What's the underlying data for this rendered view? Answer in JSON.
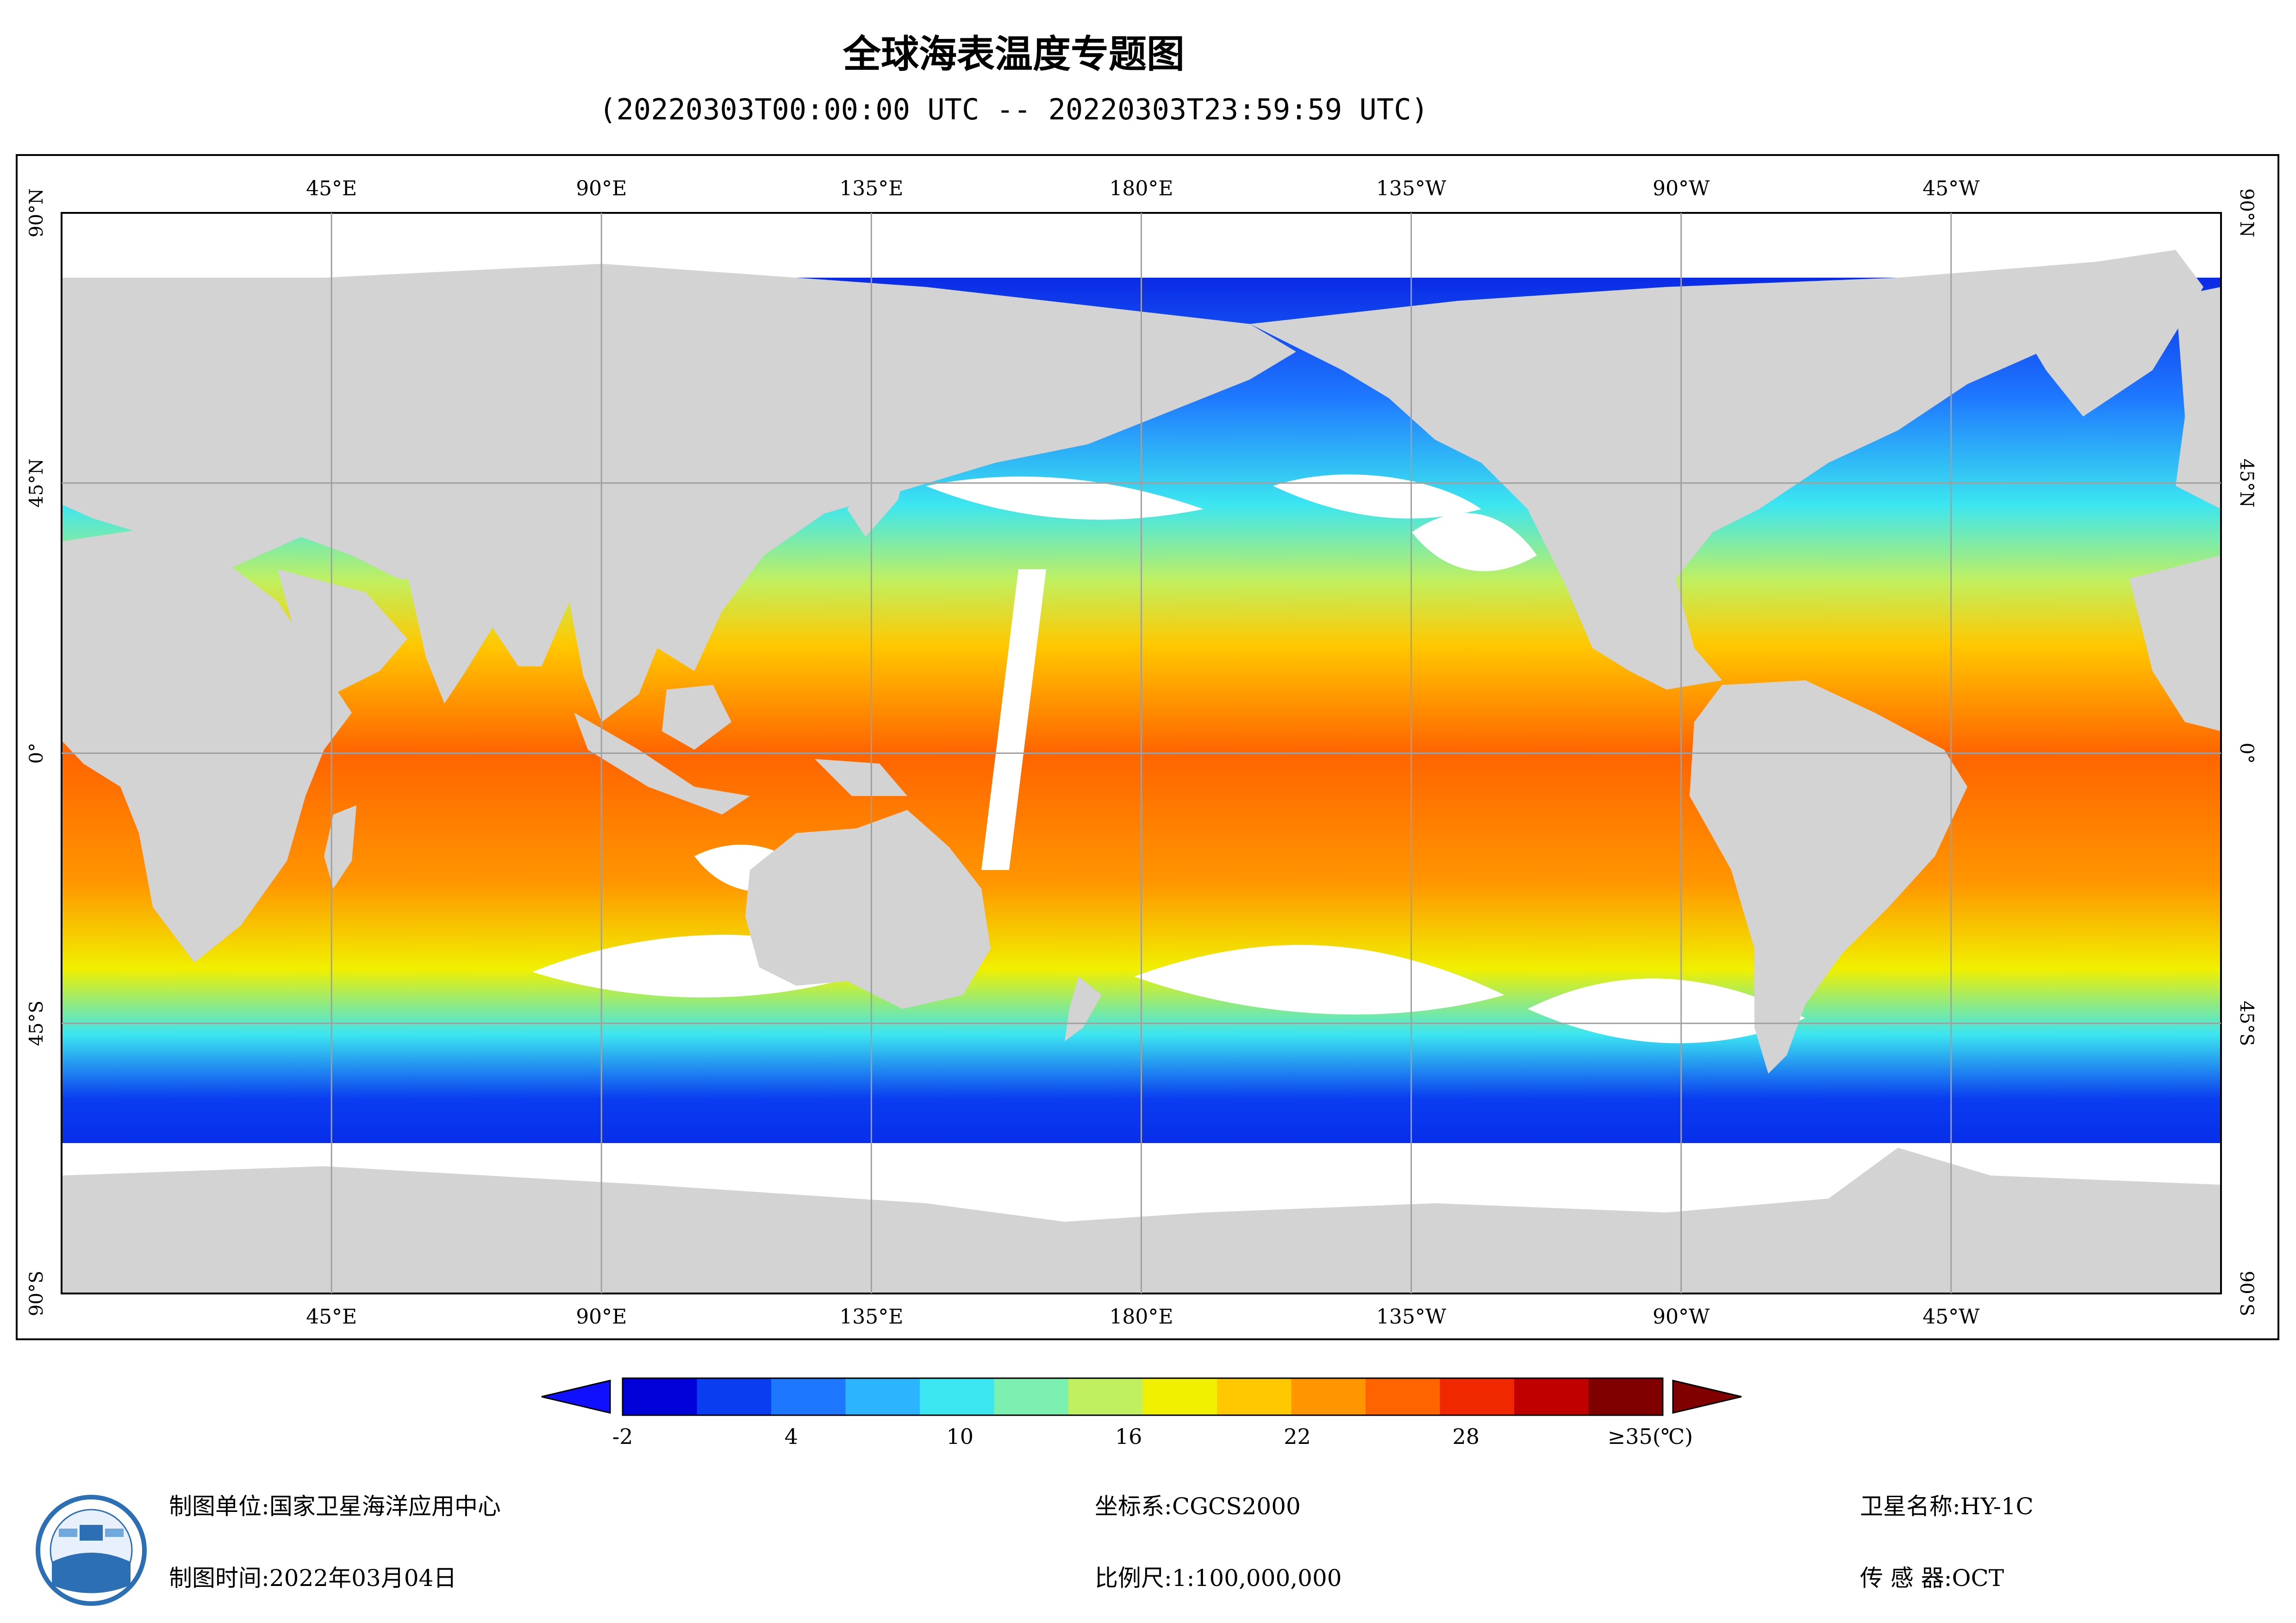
{
  "title": "全球海表温度专题图",
  "subtitle": "(20220303T00:00:00 UTC -- 20220303T23:59:59 UTC)",
  "map": {
    "top_lon_labels": [
      "45°E",
      "90°E",
      "135°E",
      "180°E",
      "135°W",
      "90°W",
      "45°W"
    ],
    "bottom_lon_labels": [
      "45°E",
      "90°E",
      "135°E",
      "180°E",
      "135°W",
      "90°W",
      "45°W"
    ],
    "left_lat_labels": [
      "90°N",
      "45°N",
      "0°",
      "45°S",
      "90°S"
    ],
    "right_lat_labels": [
      "90°N",
      "45°N",
      "0°",
      "45°S",
      "90°S"
    ],
    "land_color": "#d3d3d3",
    "nodata_color": "#ffffff",
    "grid_color": "#a0a0a0"
  },
  "colorbar": {
    "tick_labels": [
      "-2",
      "4",
      "10",
      "16",
      "22",
      "28"
    ],
    "max_label": "≥35(℃)",
    "colors": [
      "#0000d8",
      "#0a3cf0",
      "#1e78ff",
      "#2cb4ff",
      "#3ce6f0",
      "#7cf0b0",
      "#c0f060",
      "#f0f000",
      "#ffc800",
      "#ff9600",
      "#ff6400",
      "#f02800",
      "#c00000",
      "#800000"
    ]
  },
  "footer": {
    "unit_label": "制图单位:",
    "unit_value": "国家卫星海洋应用中心",
    "time_label": "制图时间:",
    "time_value": "2022年03月04日",
    "crs_label": "坐标系:",
    "crs_value": "CGCS2000",
    "scale_label": "比例尺:",
    "scale_value": "1:100,000,000",
    "satellite_label": "卫星名称:",
    "satellite_value": "HY-1C",
    "sensor_label": "传 感 器:",
    "sensor_value": "OCT"
  }
}
